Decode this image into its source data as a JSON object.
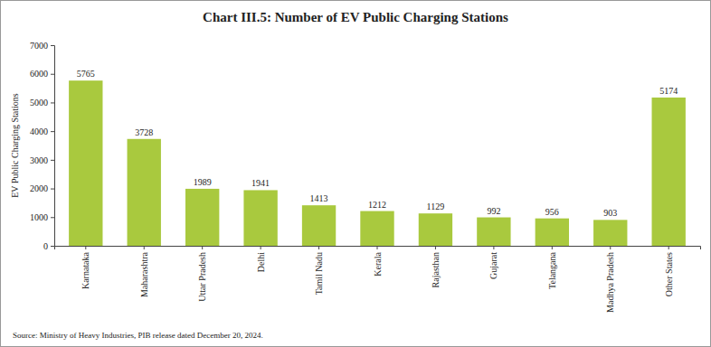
{
  "chart_data": {
    "type": "bar",
    "title": "Chart III.5: Number of EV Public Charging Stations",
    "y_label": "EV Public Charging Stations",
    "categories": [
      "Karnataka",
      "Maharashtra",
      "Uttar Pradesh",
      "Delhi",
      "Tamil Nadu",
      "Kerala",
      "Rajasthan",
      "Gujarat",
      "Telangana",
      "Madhya Pradesh",
      "Other States"
    ],
    "values": [
      5765,
      3728,
      1989,
      1941,
      1413,
      1212,
      1129,
      992,
      956,
      903,
      5174
    ],
    "color": "#a9c93e",
    "ylim": [
      0,
      7000
    ],
    "yticks": [
      0,
      1000,
      2000,
      3000,
      4000,
      5000,
      6000,
      7000
    ],
    "grid": false,
    "data_labels": true,
    "annotations": [
      "Source: Ministry of Heavy Industries, PIB release dated December 20, 2024."
    ]
  }
}
